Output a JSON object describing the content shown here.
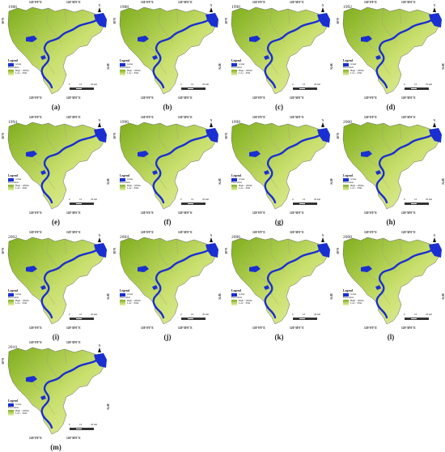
{
  "longitude_labels": {
    "west": "120°0'0\"E",
    "east": "120°30'0\"E"
  },
  "latitude_labels": {
    "north": "30°N",
    "south": "30°N"
  },
  "legend": {
    "title": "Legend",
    "water_label": "water",
    "elevation_title": "Elevation",
    "high_label": "High : 1093m",
    "low_label": "Low : -83m"
  },
  "north_label": "N",
  "scale": {
    "ticks": [
      "0",
      "10",
      "20 km"
    ]
  },
  "colors": {
    "water": "#1a2fd1",
    "land_high": "#7fae1c",
    "land_low": "#e8f2a8",
    "outline": "#666666"
  },
  "panels": [
    {
      "caption": "(a)",
      "year": "1986"
    },
    {
      "caption": "(b)",
      "year": "1988"
    },
    {
      "caption": "(c)",
      "year": "1990"
    },
    {
      "caption": "(d)",
      "year": "1992"
    },
    {
      "caption": "(e)",
      "year": "1994"
    },
    {
      "caption": "(f)",
      "year": "1996"
    },
    {
      "caption": "(g)",
      "year": "1998"
    },
    {
      "caption": "(h)",
      "year": "2000"
    },
    {
      "caption": "(i)",
      "year": "2002"
    },
    {
      "caption": "(j)",
      "year": "2004"
    },
    {
      "caption": "(k)",
      "year": "2006"
    },
    {
      "caption": "(l)",
      "year": "2008"
    },
    {
      "caption": "(m)",
      "year": "2010"
    }
  ]
}
